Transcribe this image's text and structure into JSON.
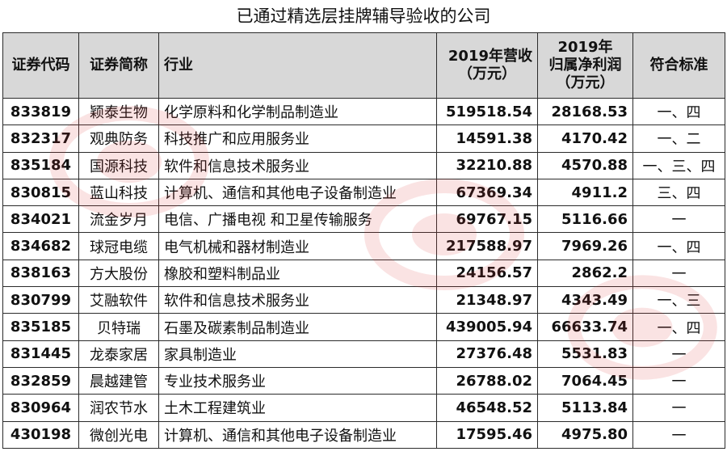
{
  "title": "已通过精选层挂牌辅导验收的公司",
  "colors": {
    "header_bg": "#d8d8d8",
    "border": "#2b2b2b",
    "watermark": "#e03030"
  },
  "watermark_icon": "shangzheng-logo-icon",
  "columns": {
    "code": "证券代码",
    "name": "证券简称",
    "industry": "行业",
    "revenue_line1": "2019年营收",
    "revenue_line2": "（万元）",
    "profit_line1": "2019年",
    "profit_line2": "归属净利润",
    "profit_line3": "（万元）",
    "standard": "符合标准"
  },
  "rows": [
    {
      "code": "833819",
      "name": "颖泰生物",
      "industry": "化学原料和化学制品制造业",
      "revenue": "519518.54",
      "profit": "28168.53",
      "standard": "一、四"
    },
    {
      "code": "832317",
      "name": "观典防务",
      "industry": "科技推广和应用服务业",
      "revenue": "14591.38",
      "profit": "4170.42",
      "standard": "一、二"
    },
    {
      "code": "835184",
      "name": "国源科技",
      "industry": "软件和信息技术服务业",
      "revenue": "32210.88",
      "profit": "4570.88",
      "standard": "一、三、四"
    },
    {
      "code": "830815",
      "name": "蓝山科技",
      "industry": "计算机、通信和其他电子设备制造业",
      "revenue": "67369.34",
      "profit": "4911.2",
      "standard": "三、四"
    },
    {
      "code": "834021",
      "name": "流金岁月",
      "industry": "电信、广播电视 和卫星传输服务",
      "revenue": "69767.15",
      "profit": "5116.66",
      "standard": "一"
    },
    {
      "code": "834682",
      "name": "球冠电缆",
      "industry": "电气机械和器材制造业",
      "revenue": "217588.97",
      "profit": "7969.26",
      "standard": "一、四"
    },
    {
      "code": "838163",
      "name": "方大股份",
      "industry": "橡胶和塑料制品业",
      "revenue": "24156.57",
      "profit": "2862.2",
      "standard": "一"
    },
    {
      "code": "830799",
      "name": "艾融软件",
      "industry": "软件和信息技术服务业",
      "revenue": "21348.97",
      "profit": "4343.49",
      "standard": "一、三"
    },
    {
      "code": "835185",
      "name": "贝特瑞",
      "industry": "石墨及碳素制品制造业",
      "revenue": "439005.94",
      "profit": "66633.74",
      "standard": "一、四"
    },
    {
      "code": "831445",
      "name": "龙泰家居",
      "industry": "家具制造业",
      "revenue": "27376.48",
      "profit": "5531.83",
      "standard": "一"
    },
    {
      "code": "832859",
      "name": "晨越建管",
      "industry": "专业技术服务业",
      "revenue": "26788.02",
      "profit": "7064.45",
      "standard": "一"
    },
    {
      "code": "830964",
      "name": "润农节水",
      "industry": "土木工程建筑业",
      "revenue": "46548.52",
      "profit": "5113.84",
      "standard": "一"
    },
    {
      "code": "430198",
      "name": "微创光电",
      "industry": "计算机、通信和其他电子设备制造业",
      "revenue": "17595.46",
      "profit": "4975.80",
      "standard": "一"
    }
  ]
}
